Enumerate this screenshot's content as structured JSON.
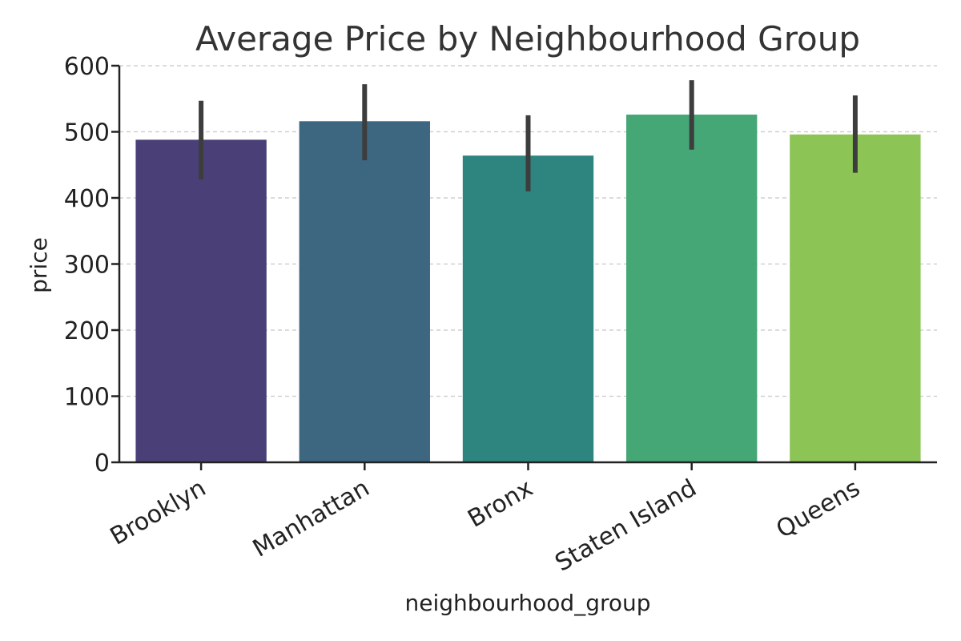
{
  "chart_data": {
    "type": "bar",
    "title": "Average Price by Neighbourhood Group",
    "xlabel": "neighbourhood_group",
    "ylabel": "price",
    "categories": [
      "Brooklyn",
      "Manhattan",
      "Bronx",
      "Staten Island",
      "Queens"
    ],
    "values": [
      488,
      516,
      464,
      526,
      496
    ],
    "error_low": [
      428,
      457,
      410,
      473,
      438
    ],
    "error_high": [
      547,
      572,
      525,
      578,
      555
    ],
    "colors": [
      "#4a4077",
      "#3d6680",
      "#2e847e",
      "#45a676",
      "#8cc456"
    ],
    "error_color": "#3d3d3d",
    "ylim": [
      0,
      600
    ],
    "yticks": [
      0,
      100,
      200,
      300,
      400,
      500,
      600
    ],
    "grid": "y-dashed",
    "legend": "none"
  }
}
